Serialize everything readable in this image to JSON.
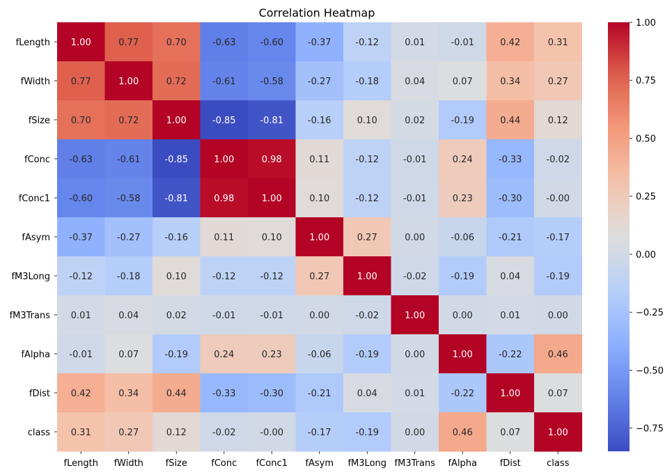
{
  "chart_data": {
    "type": "heatmap",
    "title": "Correlation Heatmap",
    "xlabel": "",
    "ylabel": "",
    "labels": [
      "fLength",
      "fWidth",
      "fSize",
      "fConc",
      "fConc1",
      "fAsym",
      "fM3Long",
      "fM3Trans",
      "fAlpha",
      "fDist",
      "class"
    ],
    "values": [
      [
        1.0,
        0.77,
        0.7,
        -0.63,
        -0.6,
        -0.37,
        -0.12,
        0.01,
        -0.01,
        0.42,
        0.31
      ],
      [
        0.77,
        1.0,
        0.72,
        -0.61,
        -0.58,
        -0.27,
        -0.18,
        0.04,
        0.07,
        0.34,
        0.27
      ],
      [
        0.7,
        0.72,
        1.0,
        -0.85,
        -0.81,
        -0.16,
        0.1,
        0.02,
        -0.19,
        0.44,
        0.12
      ],
      [
        -0.63,
        -0.61,
        -0.85,
        1.0,
        0.98,
        0.11,
        -0.12,
        -0.01,
        0.24,
        -0.33,
        -0.02
      ],
      [
        -0.6,
        -0.58,
        -0.81,
        0.98,
        1.0,
        0.1,
        -0.12,
        -0.01,
        0.23,
        -0.3,
        -0.0
      ],
      [
        -0.37,
        -0.27,
        -0.16,
        0.11,
        0.1,
        1.0,
        0.27,
        0.0,
        -0.06,
        -0.21,
        -0.17
      ],
      [
        -0.12,
        -0.18,
        0.1,
        -0.12,
        -0.12,
        0.27,
        1.0,
        -0.02,
        -0.19,
        0.04,
        -0.19
      ],
      [
        0.01,
        0.04,
        0.02,
        -0.01,
        -0.01,
        0.0,
        -0.02,
        1.0,
        0.0,
        0.01,
        0.0
      ],
      [
        -0.01,
        0.07,
        -0.19,
        0.24,
        0.23,
        -0.06,
        -0.19,
        0.0,
        1.0,
        -0.22,
        0.46
      ],
      [
        0.42,
        0.34,
        0.44,
        -0.33,
        -0.3,
        -0.21,
        0.04,
        0.01,
        -0.22,
        1.0,
        0.07
      ],
      [
        0.31,
        0.27,
        0.12,
        -0.02,
        -0.0,
        -0.17,
        -0.19,
        0.0,
        0.46,
        0.07,
        1.0
      ]
    ],
    "value_format": "0.00",
    "colormap": "coolwarm",
    "colorbar": {
      "min": -0.85,
      "max": 1.0,
      "ticks": [
        -0.75,
        -0.5,
        -0.25,
        0.0,
        0.25,
        0.5,
        0.75,
        1.0
      ],
      "tick_labels": [
        "−0.75",
        "−0.50",
        "−0.25",
        "0.00",
        "0.25",
        "0.50",
        "0.75",
        "1.00"
      ]
    },
    "grid": false
  }
}
